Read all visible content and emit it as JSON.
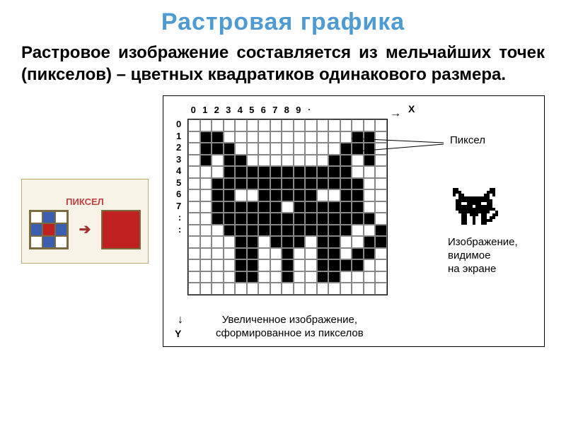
{
  "title": {
    "text": "Растровая графика",
    "color": "#4e9bd4"
  },
  "body": {
    "lead": "Растровое изображение",
    "rest": " составляется из мельчайших точек (пикселов) – цветных квадратиков одинакового размера.",
    "text_color": "#000000"
  },
  "pixel_card": {
    "label": "ПИКСЕЛ",
    "label_color": "#c04040",
    "border_color": "#b9a67a",
    "cell_border_color": "#7a6a3f",
    "bg": "#f7f3e6",
    "mini_grid": [
      [
        "#ffffff",
        "#3b5fb0",
        "#ffffff"
      ],
      [
        "#3b5fb0",
        "#c02020",
        "#3b5fb0"
      ],
      [
        "#ffffff",
        "#3b5fb0",
        "#ffffff"
      ]
    ],
    "big_cell_color": "#c02020",
    "arrow_color": "#a03030"
  },
  "diagram": {
    "x_numbers": [
      "0",
      "1",
      "2",
      "3",
      "4",
      "5",
      "6",
      "7",
      "8",
      "9"
    ],
    "y_numbers": [
      "0",
      "1",
      "2",
      "3",
      "4",
      "5",
      "6",
      "7",
      ":",
      ":"
    ],
    "x_label": "X",
    "y_label": "Y",
    "pixel_callout": "Пиксел",
    "screen_caption": "Изображение,\nвидимое\nна экране",
    "bottom_caption": "Увеличенное изображение,\nсформированное из пикселов",
    "grid_cols": 17,
    "grid_rows": 15,
    "grid_line_color": "#888888",
    "fill_color": "#000000",
    "background": "#ffffff",
    "pattern": [
      "00000000000000000",
      "01100000000000110",
      "01110000000001110",
      "01011000000011010",
      "00011111111111000",
      "00111111111111100",
      "00110011111001100",
      "00111111011111100",
      "00111111111111110",
      "00011111111111001",
      "00001101110110011",
      "00001100100110110",
      "00001100100111100",
      "00001100100110000",
      "00000000000000000"
    ]
  }
}
